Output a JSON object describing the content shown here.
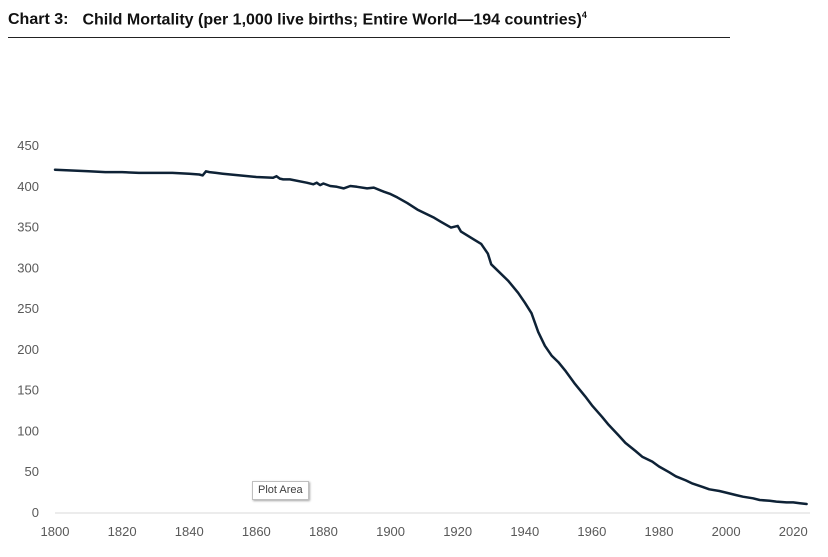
{
  "title": {
    "number": "Chart 3:",
    "text": "Child Mortality (per 1,000 live births; Entire World—194 countries)",
    "footnote": "4"
  },
  "tooltip": "Plot Area",
  "chart_data": {
    "type": "line",
    "title": "Child Mortality (per 1,000 live births; Entire World—194 countries)",
    "xlabel": "",
    "ylabel": "",
    "xlim": [
      1800,
      2025
    ],
    "ylim": [
      0,
      450
    ],
    "x_ticks": [
      1800,
      1820,
      1840,
      1860,
      1880,
      1900,
      1920,
      1940,
      1960,
      1980,
      2000,
      2020
    ],
    "y_ticks": [
      0,
      50,
      100,
      150,
      200,
      250,
      300,
      350,
      400,
      450
    ],
    "grid": false,
    "legend": "none",
    "line_color": "#0e2236",
    "series": [
      {
        "x": [
          1800,
          1805,
          1810,
          1815,
          1820,
          1825,
          1830,
          1835,
          1840,
          1843,
          1844,
          1845,
          1846,
          1848,
          1850,
          1855,
          1860,
          1865,
          1866,
          1867,
          1868,
          1870,
          1875,
          1877,
          1878,
          1879,
          1880,
          1882,
          1884,
          1886,
          1888,
          1890,
          1893,
          1895,
          1898,
          1900,
          1902,
          1905,
          1908,
          1910,
          1913,
          1915,
          1918,
          1920,
          1921,
          1923,
          1925,
          1927,
          1929,
          1930,
          1932,
          1935,
          1938,
          1940,
          1942,
          1944,
          1946,
          1948,
          1950,
          1952,
          1955,
          1958,
          1960,
          1963,
          1965,
          1968,
          1970,
          1973,
          1975,
          1978,
          1980,
          1983,
          1985,
          1988,
          1990,
          1993,
          1995,
          1998,
          2000,
          2003,
          2005,
          2008,
          2010,
          2013,
          2015,
          2018,
          2020,
          2022,
          2024
        ],
        "y": [
          421,
          420,
          419,
          418,
          418,
          417,
          417,
          417,
          416,
          415,
          414,
          419,
          418,
          417,
          416,
          414,
          412,
          411,
          413,
          410,
          409,
          409,
          405,
          403,
          405,
          402,
          404,
          401,
          400,
          398,
          401,
          400,
          398,
          399,
          394,
          391,
          387,
          380,
          372,
          368,
          362,
          357,
          350,
          352,
          345,
          340,
          335,
          330,
          318,
          305,
          297,
          285,
          270,
          258,
          245,
          222,
          205,
          193,
          185,
          175,
          158,
          143,
          132,
          118,
          108,
          95,
          86,
          76,
          69,
          63,
          57,
          50,
          45,
          40,
          36,
          32,
          29,
          27,
          25,
          22,
          20,
          18,
          16,
          15,
          14,
          13,
          13,
          12,
          11
        ]
      }
    ]
  }
}
